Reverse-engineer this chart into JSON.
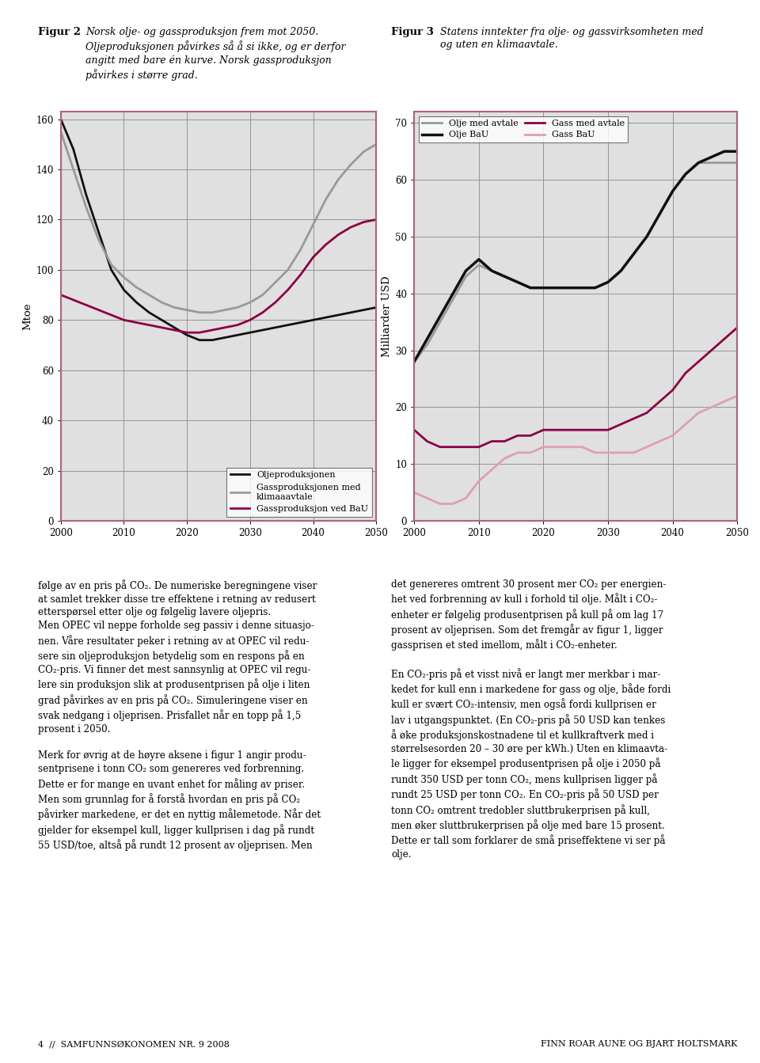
{
  "years1": [
    2000,
    2002,
    2004,
    2006,
    2008,
    2010,
    2012,
    2014,
    2016,
    2018,
    2020,
    2022,
    2024,
    2026,
    2028,
    2030,
    2032,
    2034,
    2036,
    2038,
    2040,
    2042,
    2044,
    2046,
    2048,
    2050
  ],
  "oil_prod": [
    160,
    148,
    130,
    115,
    100,
    92,
    87,
    83,
    80,
    77,
    74,
    72,
    72,
    73,
    74,
    75,
    76,
    77,
    78,
    79,
    80,
    81,
    82,
    83,
    84,
    85
  ],
  "gas_climate": [
    155,
    140,
    125,
    112,
    102,
    97,
    93,
    90,
    87,
    85,
    84,
    83,
    83,
    84,
    85,
    87,
    90,
    95,
    100,
    108,
    118,
    128,
    136,
    142,
    147,
    150
  ],
  "gas_bau": [
    90,
    88,
    86,
    84,
    82,
    80,
    79,
    78,
    77,
    76,
    75,
    75,
    76,
    77,
    78,
    80,
    83,
    87,
    92,
    98,
    105,
    110,
    114,
    117,
    119,
    120
  ],
  "years2": [
    2000,
    2002,
    2004,
    2006,
    2008,
    2010,
    2012,
    2014,
    2016,
    2018,
    2020,
    2022,
    2024,
    2026,
    2028,
    2030,
    2032,
    2034,
    2036,
    2038,
    2040,
    2042,
    2044,
    2046,
    2048,
    2050
  ],
  "oil_bau": [
    28,
    32,
    36,
    40,
    44,
    46,
    44,
    43,
    42,
    41,
    41,
    41,
    41,
    41,
    41,
    42,
    44,
    47,
    50,
    54,
    58,
    61,
    63,
    64,
    65,
    65
  ],
  "oil_avtale": [
    28,
    31,
    35,
    39,
    43,
    45,
    44,
    43,
    42,
    41,
    41,
    41,
    41,
    41,
    41,
    42,
    44,
    47,
    50,
    54,
    58,
    61,
    63,
    63,
    63,
    63
  ],
  "gass_avtale": [
    16,
    14,
    13,
    13,
    13,
    13,
    14,
    14,
    15,
    15,
    16,
    16,
    16,
    16,
    16,
    16,
    17,
    18,
    19,
    21,
    23,
    26,
    28,
    30,
    32,
    34
  ],
  "gass_bau": [
    5,
    4,
    3,
    3,
    4,
    7,
    9,
    11,
    12,
    12,
    13,
    13,
    13,
    13,
    12,
    12,
    12,
    12,
    13,
    14,
    15,
    17,
    19,
    20,
    21,
    22
  ],
  "color_black": "#111111",
  "color_gray": "#999999",
  "color_dark_pink": "#8b0045",
  "color_light_pink": "#dea0b0",
  "fig_bg": "#ffffff",
  "chart_bg": "#e0e0e0",
  "border_color": "#b06080",
  "ylabel1": "Mtoe",
  "ylabel2": "Milliarder USD",
  "yticks1": [
    0,
    20,
    40,
    60,
    80,
    100,
    120,
    140,
    160
  ],
  "yticks2": [
    0,
    10,
    20,
    30,
    40,
    50,
    60,
    70
  ],
  "xticks": [
    2000,
    2010,
    2020,
    2030,
    2040,
    2050
  ]
}
